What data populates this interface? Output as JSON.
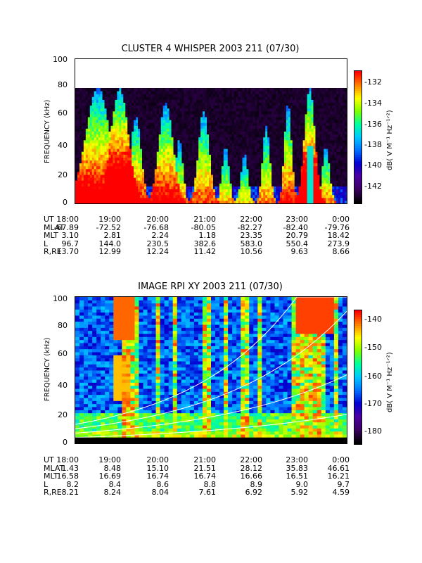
{
  "panels": [
    {
      "id": "whisper",
      "title": "CLUSTER 4 WHISPER 2003 211 (07/30)",
      "ylabel": "FREQUENCY (kHz)",
      "yticks": [
        "100",
        "80",
        "60",
        "40",
        "20",
        "0"
      ],
      "colorbar_label": "dB( V M⁻¹ Hz⁻¹ᐟ²)",
      "colorbar_ticks": [
        "-132",
        "-134",
        "-136",
        "-138",
        "-140",
        "-142"
      ],
      "ephemeris": {
        "times": [
          "18:00",
          "19:00",
          "20:00",
          "21:00",
          "22:00",
          "23:00",
          "0:00"
        ],
        "rows": [
          {
            "label": "UT",
            "values": [
              "18:00",
              "19:00",
              "20:00",
              "21:00",
              "22:00",
              "23:00",
              "0:00"
            ]
          },
          {
            "label": "MLAT",
            "values": [
              "-67.89",
              "-72.52",
              "-76.68",
              "-80.05",
              "-82.27",
              "-82.40",
              "-79.76"
            ]
          },
          {
            "label": "MLT",
            "values": [
              "3.10",
              "2.81",
              "2.24",
              "1.18",
              "23.35",
              "20.79",
              "18.42"
            ]
          },
          {
            "label": "L",
            "values": [
              "96.7",
              "144.0",
              "230.5",
              "382.6",
              "583.0",
              "550.4",
              "273.9"
            ]
          },
          {
            "label": "R,RE",
            "values": [
              "13.70",
              "12.99",
              "12.24",
              "11.42",
              "10.56",
              "9.63",
              "8.66"
            ]
          }
        ]
      }
    },
    {
      "id": "rpi",
      "title": "IMAGE RPI XY 2003 211 (07/30)",
      "ylabel": "FREQUENCY (kHz)",
      "yticks": [
        "100",
        "80",
        "60",
        "40",
        "20",
        "0"
      ],
      "colorbar_label": "dB( V M⁻¹ Hz⁻¹ᐟ²)",
      "colorbar_ticks": [
        "-140",
        "-150",
        "-160",
        "-170",
        "-180"
      ],
      "ephemeris": {
        "rows": [
          {
            "label": "UT",
            "values": [
              "18:00",
              "19:00",
              "20:00",
              "21:00",
              "22:00",
              "23:00",
              "0:00"
            ]
          },
          {
            "label": "MLAT",
            "values": [
              "1.43",
              "8.48",
              "15.10",
              "21.51",
              "28.12",
              "35.83",
              "46.61"
            ]
          },
          {
            "label": "MLT",
            "values": [
              "16.58",
              "16.69",
              "16.74",
              "16.74",
              "16.66",
              "16.51",
              "16.21"
            ]
          },
          {
            "label": "L",
            "values": [
              "8.2",
              "8.4",
              "8.6",
              "8.8",
              "8.9",
              "9.0",
              "9.7"
            ]
          },
          {
            "label": "R,RE",
            "values": [
              "8.21",
              "8.24",
              "8.04",
              "7.61",
              "6.92",
              "5.92",
              "4.59"
            ]
          }
        ]
      }
    }
  ],
  "chart_data": [
    {
      "type": "heatmap",
      "title": "CLUSTER 4 WHISPER 2003 211 (07/30)",
      "ylabel": "FREQUENCY (kHz)",
      "ylim": [
        0,
        100
      ],
      "data_extent_khz": [
        0,
        80
      ],
      "x_ticks": [
        "18:00",
        "19:00",
        "20:00",
        "21:00",
        "22:00",
        "23:00",
        "0:00"
      ],
      "colorbar": {
        "label": "dB( V M⁻¹ Hz⁻¹ᐟ²)",
        "range": [
          -143,
          -131
        ],
        "ticks": [
          -132,
          -134,
          -136,
          -138,
          -140,
          -142
        ]
      },
      "colormap": [
        "#000000",
        "#3b0060",
        "#4b00a0",
        "#0000d0",
        "#0070ff",
        "#00c8ff",
        "#00ffa0",
        "#80ff00",
        "#ffff00",
        "#ff8000",
        "#ff0000"
      ]
    },
    {
      "type": "heatmap",
      "title": "IMAGE RPI XY 2003 211 (07/30)",
      "ylabel": "FREQUENCY (kHz)",
      "ylim": [
        0,
        100
      ],
      "x_ticks": [
        "18:00",
        "19:00",
        "20:00",
        "21:00",
        "22:00",
        "23:00",
        "0:00"
      ],
      "colorbar": {
        "label": "dB( V M⁻¹ Hz⁻¹ᐟ²)",
        "range": [
          -185,
          -135
        ],
        "ticks": [
          -140,
          -150,
          -160,
          -170,
          -180
        ]
      },
      "colormap": [
        "#000000",
        "#3b0060",
        "#4b00a0",
        "#0000d0",
        "#0070ff",
        "#00c8ff",
        "#00ffa0",
        "#80ff00",
        "#ffff00",
        "#ff8000",
        "#ff0000"
      ]
    }
  ]
}
